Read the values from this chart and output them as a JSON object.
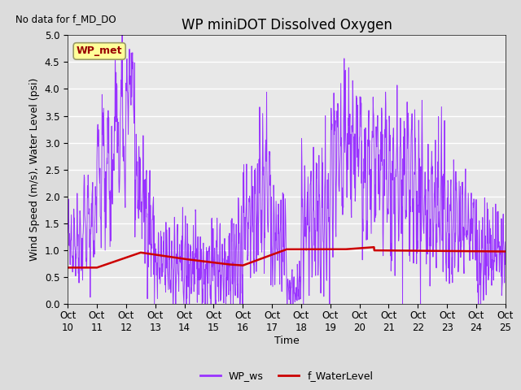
{
  "title": "WP miniDOT Dissolved Oxygen",
  "top_left_text": "No data for f_MD_DO",
  "ylabel": "Wind Speed (m/s), Water Level (psi)",
  "xlabel": "Time",
  "ylim": [
    0.0,
    5.0
  ],
  "yticks": [
    0.0,
    0.5,
    1.0,
    1.5,
    2.0,
    2.5,
    3.0,
    3.5,
    4.0,
    4.5,
    5.0
  ],
  "xtick_labels": [
    "Oct 10",
    "Oct 11",
    "Oct 12",
    "Oct 13",
    "Oct 14",
    "Oct 15",
    "Oct 16",
    "Oct 17",
    "Oct 18",
    "Oct 19",
    "Oct 20",
    "Oct 21",
    "Oct 22",
    "Oct 23",
    "Oct 24",
    "Oct 25"
  ],
  "legend_entries": [
    "WP_ws",
    "f_WaterLevel"
  ],
  "legend_colors": [
    "#9933FF",
    "#CC0000"
  ],
  "fig_facecolor": "#DCDCDC",
  "axes_facecolor": "#E8E8E8",
  "inset_label": "WP_met",
  "inset_label_color": "#990000",
  "inset_box_facecolor": "#FFFF99",
  "inset_box_edgecolor": "#999966",
  "wp_ws_color": "#9933FF",
  "f_waterlevel_color": "#CC0000",
  "grid_color": "white",
  "title_fontsize": 12,
  "label_fontsize": 9,
  "tick_fontsize": 8.5
}
